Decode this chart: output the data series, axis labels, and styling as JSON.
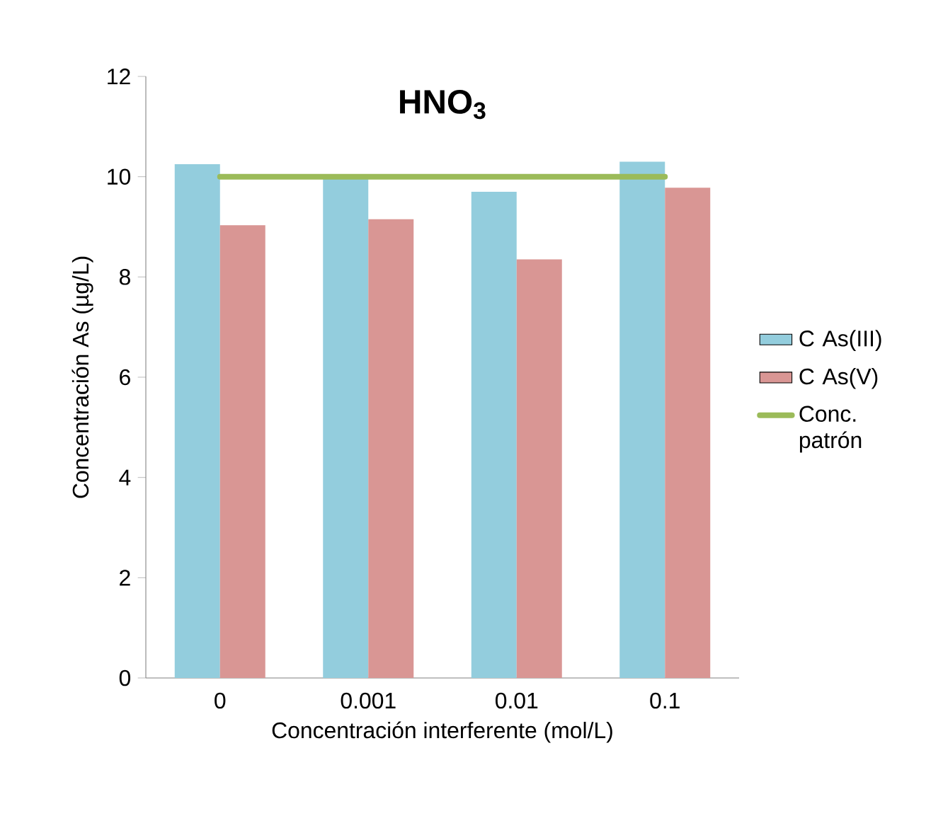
{
  "chart_data": {
    "type": "bar",
    "title": "HNO$_{3}$",
    "xlabel": "Concentración interferente (mol/L)",
    "ylabel": "Concentración As (µg/L)",
    "categories": [
      "0",
      "0.001",
      "0.01",
      "0.1"
    ],
    "series": [
      {
        "name": "C As(III)",
        "color": "#93cddd",
        "values": [
          10.25,
          10.0,
          9.7,
          10.3
        ]
      },
      {
        "name": "C As(V)",
        "color": "#d99694",
        "values": [
          9.03,
          9.15,
          8.35,
          9.78
        ]
      },
      {
        "name": "Conc. patrón",
        "type": "line",
        "color": "#9bbb59",
        "values": [
          10,
          10,
          10,
          10
        ]
      }
    ],
    "ylim": [
      0,
      12
    ],
    "yticks": [
      0,
      2,
      4,
      6,
      8,
      10,
      12
    ],
    "legend": "right"
  }
}
